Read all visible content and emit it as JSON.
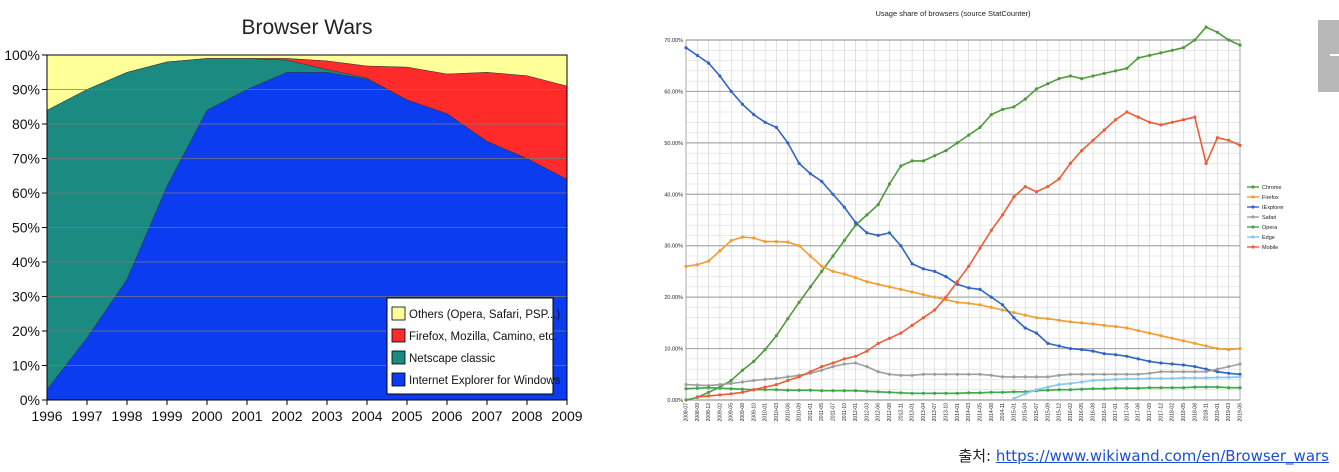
{
  "chart_data": [
    {
      "type": "area",
      "stacked": true,
      "title": "Browser Wars",
      "x": [
        1996,
        1997,
        1998,
        1999,
        2000,
        2001,
        2002,
        2003,
        2004,
        2005,
        2006,
        2007,
        2008,
        2009
      ],
      "x_tick_labels": [
        "1996",
        "1997",
        "1998",
        "1999",
        "2000",
        "2001",
        "2002",
        "2003",
        "2004",
        "2005",
        "2006",
        "2007",
        "2008",
        "2009"
      ],
      "ylim": [
        0,
        100
      ],
      "y_tick_labels": [
        "0%",
        "10%",
        "20%",
        "30%",
        "40%",
        "50%",
        "60%",
        "70%",
        "80%",
        "90%",
        "100%"
      ],
      "grid": true,
      "legend": "bottom-right",
      "series": [
        {
          "name": "Internet Explorer for Windows",
          "color": "#0b3cf0",
          "values": [
            3,
            18,
            35,
            62,
            84,
            90,
            95,
            95,
            93,
            87,
            83,
            75,
            70,
            64
          ]
        },
        {
          "name": "Netscape classic",
          "color": "#1b8a80",
          "values": [
            81,
            72,
            60,
            36,
            15,
            9,
            3.5,
            0.8,
            0.3,
            0,
            0,
            0,
            0,
            0
          ]
        },
        {
          "name": "Firefox, Mozilla, Camino, etc.",
          "color": "#ff2a2a",
          "values": [
            0,
            0,
            0,
            0,
            0,
            0,
            0.5,
            2.5,
            3.5,
            9.5,
            11.5,
            20,
            24,
            27
          ]
        },
        {
          "name": "Others (Opera, Safari, PSP...)",
          "color": "#ffff99",
          "values": [
            16,
            10,
            5,
            2,
            1,
            1,
            1,
            1.7,
            3.2,
            3.5,
            5.5,
            5,
            6,
            9
          ]
        }
      ]
    },
    {
      "type": "line",
      "title": "Usage share of browsers (source StatCounter)",
      "x": [
        "2008-07",
        "2008-09",
        "2008-12",
        "2009-02",
        "2009-05",
        "2009-08",
        "2009-10",
        "2010-01",
        "2010-03",
        "2010-06",
        "2010-09",
        "2011-01",
        "2011-05",
        "2011-07",
        "2011-10",
        "2012-01",
        "2012-03",
        "2012-06",
        "2012-08",
        "2012-11",
        "2013-01",
        "2013-04",
        "2013-07",
        "2013-10",
        "2014-01",
        "2014-03",
        "2014-05",
        "2014-08",
        "2014-11",
        "2015-01",
        "2015-04",
        "2015-07",
        "2015-09",
        "2015-12",
        "2016-02",
        "2016-05",
        "2016-08",
        "2016-10",
        "2017-01",
        "2017-04",
        "2017-06",
        "2017-09",
        "2017-12",
        "2018-02",
        "2018-05",
        "2018-08",
        "2018-11",
        "2019-01",
        "2019-03",
        "2019-06"
      ],
      "ylim": [
        0,
        70
      ],
      "y_tick_labels": [
        "0.00%",
        "10.00%",
        "20.00%",
        "30.00%",
        "40.00%",
        "50.00%",
        "60.00%",
        "70.00%"
      ],
      "grid": true,
      "legend": "right",
      "series": [
        {
          "name": "Chrome",
          "color": "#4f9a3a",
          "values": [
            0,
            0.5,
            1.5,
            2.5,
            3.8,
            5.8,
            7.5,
            9.8,
            12.5,
            15.8,
            19,
            22,
            25,
            28,
            31,
            34,
            36,
            38,
            42,
            45.5,
            46.5,
            46.5,
            47.5,
            48.5,
            50,
            51.5,
            53,
            55.5,
            56.5,
            57,
            58.5,
            60.5,
            61.5,
            62.5,
            63,
            62.5,
            63,
            63.5,
            64,
            64.5,
            66.5,
            67,
            67.5,
            68,
            68.5,
            70,
            72.5,
            71.5,
            70,
            69
          ]
        },
        {
          "name": "Firefox",
          "color": "#f39c2f",
          "values": [
            26,
            26.3,
            27,
            29,
            31,
            31.7,
            31.5,
            30.8,
            30.8,
            30.7,
            30,
            28,
            26,
            25,
            24.5,
            23.8,
            23,
            22.5,
            22,
            21.5,
            21,
            20.5,
            20,
            19.5,
            19,
            18.8,
            18.5,
            18,
            17.5,
            17,
            16.5,
            16,
            15.8,
            15.5,
            15.2,
            15,
            14.8,
            14.5,
            14.3,
            14,
            13.5,
            13,
            12.5,
            12,
            11.5,
            11,
            10.5,
            10,
            9.8,
            10
          ]
        },
        {
          "name": "IExplorer",
          "color": "#2f66c4",
          "values": [
            68.5,
            67,
            65.5,
            63,
            60,
            57.5,
            55.5,
            54,
            53,
            50,
            46,
            44,
            42.5,
            40,
            37.5,
            34.5,
            32.5,
            32,
            32.5,
            30,
            26.5,
            25.5,
            25,
            24,
            22.5,
            21.8,
            21.5,
            20,
            18.5,
            16,
            14,
            13,
            11,
            10.5,
            10,
            9.8,
            9.5,
            9,
            8.8,
            8.5,
            8,
            7.5,
            7.2,
            7,
            6.8,
            6.5,
            6,
            5.5,
            5.2,
            5
          ]
        },
        {
          "name": "Safari",
          "color": "#9e9e9e",
          "values": [
            3,
            2.9,
            2.8,
            3,
            3.2,
            3.5,
            3.8,
            4,
            4.2,
            4.5,
            4.8,
            5.2,
            5.8,
            6.5,
            7,
            7.2,
            6.5,
            5.5,
            5,
            4.8,
            4.8,
            5,
            5,
            5,
            5,
            5,
            5,
            4.8,
            4.5,
            4.5,
            4.5,
            4.5,
            4.5,
            4.8,
            5,
            5,
            5,
            5,
            5,
            5,
            5,
            5.2,
            5.5,
            5.5,
            5.5,
            5.5,
            5.5,
            6,
            6.5,
            7
          ]
        },
        {
          "name": "Opera",
          "color": "#3fa84a",
          "values": [
            2.2,
            2.3,
            2.4,
            2.3,
            2.2,
            2.1,
            2,
            2,
            2,
            1.9,
            1.9,
            1.9,
            1.8,
            1.8,
            1.8,
            1.8,
            1.7,
            1.6,
            1.5,
            1.4,
            1.3,
            1.3,
            1.3,
            1.3,
            1.3,
            1.4,
            1.4,
            1.5,
            1.5,
            1.6,
            1.6,
            1.8,
            1.9,
            2,
            2,
            2.1,
            2.2,
            2.2,
            2.3,
            2.3,
            2.3,
            2.4,
            2.4,
            2.4,
            2.4,
            2.5,
            2.5,
            2.5,
            2.4,
            2.4
          ]
        },
        {
          "name": "Edge",
          "color": "#86c6ef",
          "values": [
            null,
            null,
            null,
            null,
            null,
            null,
            null,
            null,
            null,
            null,
            null,
            null,
            null,
            null,
            null,
            null,
            null,
            null,
            null,
            null,
            null,
            null,
            null,
            null,
            null,
            null,
            null,
            null,
            null,
            0.3,
            1.2,
            2,
            2.5,
            3,
            3.2,
            3.5,
            3.8,
            3.9,
            4,
            4.1,
            4.1,
            4.2,
            4.2,
            4.2,
            4.3,
            4.3,
            4.3,
            4.4,
            4.4,
            4.5
          ]
        },
        {
          "name": "Mobile",
          "color": "#ee5c36",
          "values": [
            null,
            0.6,
            0.8,
            1,
            1.2,
            1.5,
            2,
            2.5,
            3,
            3.8,
            4.5,
            5.5,
            6.5,
            7.2,
            8,
            8.5,
            9.5,
            11,
            12,
            13,
            14.5,
            16,
            17.5,
            20,
            23,
            26,
            29.5,
            33,
            36,
            39.5,
            41.5,
            40.5,
            41.5,
            43,
            46,
            48.5,
            50.5,
            52.5,
            54.5,
            56,
            55,
            54,
            53.5,
            54,
            54.5,
            55,
            46,
            51,
            50.5,
            49.5
          ]
        }
      ]
    }
  ],
  "source": {
    "label": "출처: ",
    "link_text": "https://www.wikiwand.com/en/Browser_wars"
  }
}
